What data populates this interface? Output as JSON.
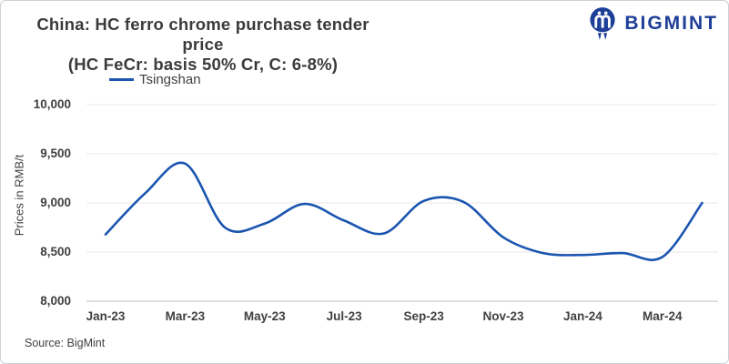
{
  "header": {
    "title_line1": "China: HC ferro chrome purchase tender price",
    "title_line2": "(HC FeCr: basis 50% Cr, C: 6-8%)"
  },
  "logo": {
    "text": "BIGMINT",
    "color": "#1e3f97"
  },
  "legend": {
    "series_label": "Tsingshan",
    "swatch_color": "#1b55b0"
  },
  "source": {
    "text": "Source: BigMint"
  },
  "chart_data": {
    "type": "line",
    "title": "China: HC ferro chrome purchase tender price (HC FeCr: basis 50% Cr, C: 6-8%)",
    "smooth": true,
    "grid": true,
    "legend_position": "top",
    "ylabel": "Prices in RMB/t",
    "xlabel": "",
    "ylim": [
      8000,
      10000
    ],
    "y_ticks": [
      8000,
      8500,
      9000,
      9500,
      10000
    ],
    "y_tick_labels": [
      "8,000",
      "8,500",
      "9,000",
      "9,500",
      "10,000"
    ],
    "x": [
      "Jan-23",
      "Feb-23",
      "Mar-23",
      "Apr-23",
      "May-23",
      "Jun-23",
      "Jul-23",
      "Aug-23",
      "Sep-23",
      "Oct-23",
      "Nov-23",
      "Dec-23",
      "Jan-24",
      "Feb-24",
      "Mar-24",
      "Apr-24"
    ],
    "x_tick_every": 2,
    "x_tick_labels": [
      "Jan-23",
      "Mar-23",
      "May-23",
      "Jul-23",
      "Sep-23",
      "Nov-23",
      "Jan-24",
      "Mar-24"
    ],
    "series": [
      {
        "name": "Tsingshan",
        "color": "#1b55b0",
        "values": [
          8680,
          9100,
          9400,
          8750,
          8790,
          8990,
          8820,
          8690,
          9020,
          9010,
          8650,
          8490,
          8470,
          8490,
          8450,
          9000
        ]
      }
    ]
  }
}
